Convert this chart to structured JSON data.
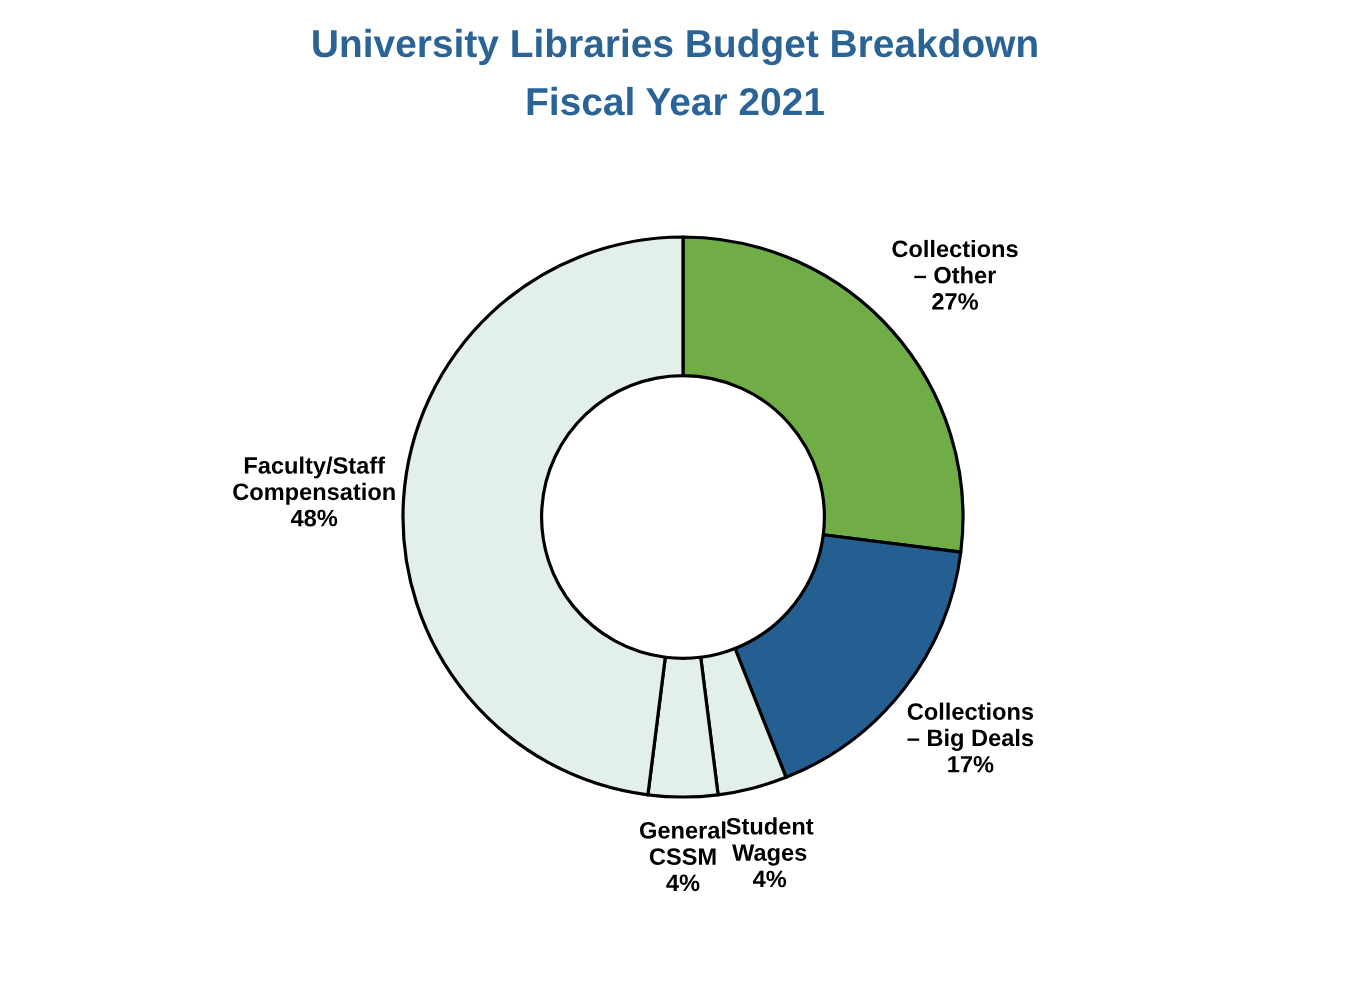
{
  "chart_data": {
    "type": "donut",
    "title": "University Libraries Budget Breakdown",
    "subtitle": "Fiscal Year 2021",
    "categories": [
      "Collections – Other",
      "Collections – Big Deals",
      "Student Wages",
      "General CSSM",
      "Faculty/Staff Compensation"
    ],
    "values": [
      27,
      17,
      4,
      4,
      48
    ],
    "colors": [
      "#70ad47",
      "#255e91",
      "#e2f0e9",
      "#e2f0e9",
      "#e2f0e9"
    ],
    "value_labels": [
      "27%",
      "17%",
      "4%",
      "4%",
      "48%"
    ]
  }
}
